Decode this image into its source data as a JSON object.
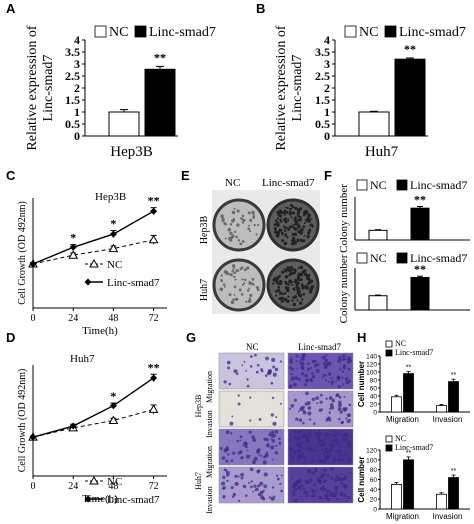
{
  "panels": {
    "A": "A",
    "B": "B",
    "C": "C",
    "D": "D",
    "E": "E",
    "F": "F",
    "G": "G",
    "H": "H"
  },
  "colors": {
    "nc": "#ffffff",
    "linc": "#000000",
    "stroke": "#000000",
    "purple_stain": "#5a3f9e",
    "colony_bg": "#d8d8d8"
  },
  "photos": {
    "E": {
      "nc_label": "NC",
      "linc_label": "Linc-smad7",
      "rows": [
        "Hep3B",
        "Huh7"
      ]
    },
    "G": {
      "nc_label": "NC",
      "linc_label": "Linc-smad7",
      "cell_lines": [
        "Hep3B",
        "Huh7"
      ],
      "assays": [
        "Migration",
        "Invasion"
      ]
    }
  },
  "chart_data": [
    {
      "id": "A",
      "type": "bar",
      "ylabel": "Relative expression of\nLinc-smad7",
      "xlabel": "Hep3B",
      "yticks": [
        "0",
        "0.5",
        "1",
        "1.5",
        "2",
        "2.5",
        "3",
        "3.5",
        "4"
      ],
      "ylim": [
        0,
        4
      ],
      "series": [
        {
          "name": "NC",
          "values": [
            1.0
          ],
          "errors": [
            0.1
          ]
        },
        {
          "name": "Linc-smad7",
          "values": [
            2.78
          ],
          "errors": [
            0.12
          ]
        }
      ],
      "annotations": [
        "**"
      ]
    },
    {
      "id": "B",
      "type": "bar",
      "ylabel": "Relative expression of\nLinc-smad7",
      "xlabel": "Huh7",
      "yticks": [
        "0",
        "0.5",
        "1",
        "1.5",
        "2",
        "2.5",
        "3",
        "3.5",
        "4"
      ],
      "ylim": [
        0,
        4
      ],
      "series": [
        {
          "name": "NC",
          "values": [
            1.0
          ],
          "errors": [
            0.03
          ]
        },
        {
          "name": "Linc-smad7",
          "values": [
            3.2
          ],
          "errors": [
            0.05
          ]
        }
      ],
      "annotations": [
        "**"
      ]
    },
    {
      "id": "C",
      "type": "line",
      "title": "Hep3B",
      "xlabel": "Time(h)",
      "ylabel": "Cell Growth (OD 492nm)",
      "x": [
        0,
        24,
        48,
        72
      ],
      "xticks": [
        "0",
        "24",
        "48",
        "72"
      ],
      "xlim": [
        0,
        80
      ],
      "ylim": [
        0,
        2.5
      ],
      "series": [
        {
          "name": "NC",
          "values": [
            1.0,
            1.2,
            1.35,
            1.55
          ],
          "errors": [
            0.03,
            0.05,
            0.06,
            0.1
          ]
        },
        {
          "name": "Linc-smad7",
          "values": [
            1.0,
            1.38,
            1.68,
            2.2
          ],
          "errors": [
            0.03,
            0.06,
            0.08,
            0.08
          ]
        }
      ],
      "annotations": [
        {
          "x": 24,
          "text": "*"
        },
        {
          "x": 48,
          "text": "*"
        },
        {
          "x": 72,
          "text": "**"
        }
      ]
    },
    {
      "id": "D",
      "type": "line",
      "title": "Huh7",
      "xlabel": "Time(h)",
      "ylabel": "Cell Growth (OD 492nm)",
      "x": [
        0,
        24,
        48,
        72
      ],
      "xticks": [
        "0",
        "24",
        "48",
        "72"
      ],
      "xlim": [
        0,
        80
      ],
      "ylim": [
        0,
        3
      ],
      "series": [
        {
          "name": "NC",
          "values": [
            1.05,
            1.3,
            1.5,
            1.8
          ],
          "errors": [
            0.03,
            0.05,
            0.06,
            0.12
          ]
        },
        {
          "name": "Linc-smad7",
          "values": [
            1.05,
            1.35,
            1.9,
            2.65
          ],
          "errors": [
            0.03,
            0.05,
            0.07,
            0.1
          ]
        }
      ],
      "annotations": [
        {
          "x": 48,
          "text": "*"
        },
        {
          "x": 72,
          "text": "**"
        }
      ]
    },
    {
      "id": "F1",
      "type": "bar",
      "ylabel": "Colony number",
      "series": [
        {
          "name": "NC",
          "values": [
            45
          ],
          "errors": [
            3
          ]
        },
        {
          "name": "Linc-smad7",
          "values": [
            148
          ],
          "errors": [
            8
          ]
        }
      ],
      "ylim": [
        0,
        200
      ],
      "annotations": [
        "**"
      ]
    },
    {
      "id": "F2",
      "type": "bar",
      "ylabel": "Colony number",
      "series": [
        {
          "name": "NC",
          "values": [
            68
          ],
          "errors": [
            3
          ]
        },
        {
          "name": "Linc-smad7",
          "values": [
            155
          ],
          "errors": [
            6
          ]
        }
      ],
      "ylim": [
        0,
        200
      ],
      "annotations": [
        "**"
      ]
    },
    {
      "id": "H1",
      "type": "bar",
      "ylabel": "Cell number",
      "categories": [
        "Migration",
        "Invasion"
      ],
      "yticks": [
        "0",
        "20",
        "40",
        "60",
        "80",
        "100",
        "120",
        "140"
      ],
      "ylim": [
        0,
        140
      ],
      "series": [
        {
          "name": "NC",
          "values": [
            38,
            16
          ],
          "errors": [
            4,
            3
          ]
        },
        {
          "name": "Linc-smad7",
          "values": [
            96,
            76
          ],
          "errors": [
            5,
            6
          ]
        }
      ],
      "annotations": [
        "**",
        "**"
      ]
    },
    {
      "id": "H2",
      "type": "bar",
      "ylabel": "Cell number",
      "categories": [
        "Migration",
        "Invasion"
      ],
      "yticks": [
        "0",
        "20",
        "40",
        "60",
        "80",
        "100",
        "120"
      ],
      "ylim": [
        0,
        120
      ],
      "series": [
        {
          "name": "NC",
          "values": [
            50,
            30
          ],
          "errors": [
            4,
            3
          ]
        },
        {
          "name": "Linc-smad7",
          "values": [
            100,
            64
          ],
          "errors": [
            6,
            5
          ]
        }
      ],
      "annotations": [
        "**",
        "**"
      ]
    }
  ]
}
